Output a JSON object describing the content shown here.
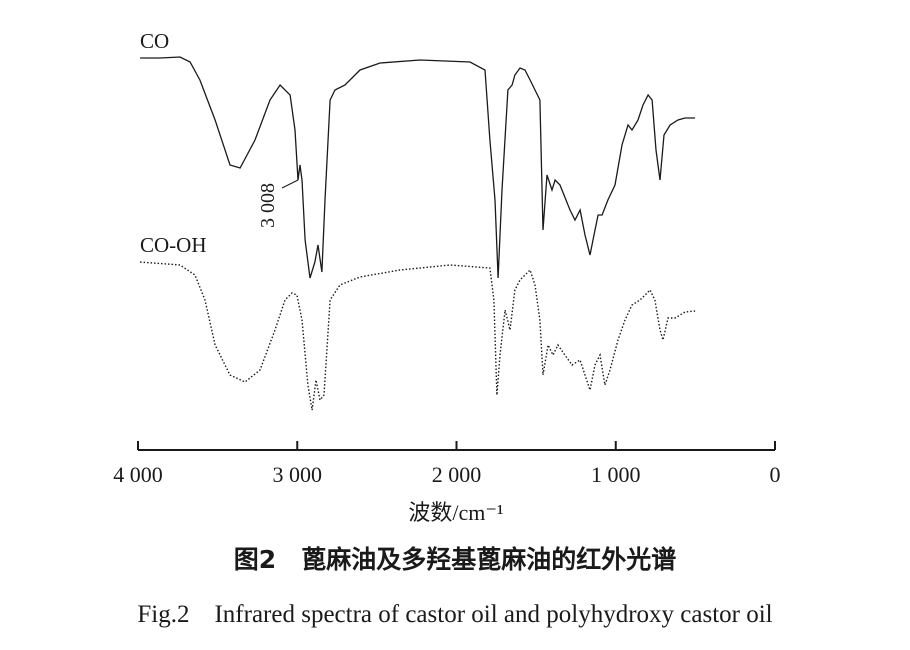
{
  "chart_data": {
    "type": "line",
    "x_label": "波数/cm⁻¹",
    "caption_cn": "图2　蓖麻油及多羟基蓖麻油的红外光谱",
    "caption_en": "Fig.2　Infrared spectra of castor oil and polyhydroxy castor oil",
    "annotation": "3 008",
    "xlim": [
      4000,
      0
    ],
    "xticks": [
      {
        "value": 4000,
        "label": "4 000"
      },
      {
        "value": 3000,
        "label": "3 000"
      },
      {
        "value": 2000,
        "label": "2 000"
      },
      {
        "value": 1000,
        "label": "1 000"
      },
      0
    ],
    "series": [
      {
        "name": "CO",
        "color": "#1a1a1a",
        "line_style": "solid",
        "x": [
          3987,
          3862,
          3736,
          3673,
          3611,
          3516,
          3422,
          3359,
          3265,
          3171,
          3108,
          3045,
          3014,
          2995,
          2983,
          2970,
          2951,
          2920,
          2889,
          2870,
          2845,
          2826,
          2794,
          2763,
          2700,
          2606,
          2480,
          2229,
          1915,
          1821,
          1790,
          1758,
          1739,
          1714,
          1677,
          1651,
          1633,
          1601,
          1570,
          1538,
          1507,
          1476,
          1457,
          1432,
          1400,
          1381,
          1350,
          1287,
          1256,
          1224,
          1193,
          1162,
          1130,
          1111,
          1086,
          1049,
          1005,
          961,
          923,
          898,
          860,
          829,
          797,
          772,
          747,
          722,
          697,
          659,
          609,
          565,
          502
        ],
        "values": [
          392,
          392,
          393,
          388,
          370,
          330,
          285,
          282,
          310,
          350,
          365,
          355,
          320,
          270,
          285,
          270,
          210,
          172,
          188,
          205,
          178,
          250,
          350,
          360,
          365,
          380,
          387,
          390,
          388,
          380,
          310,
          250,
          172,
          260,
          360,
          365,
          375,
          382,
          380,
          370,
          360,
          350,
          220,
          275,
          260,
          270,
          265,
          240,
          230,
          240,
          215,
          195,
          220,
          235,
          235,
          250,
          265,
          305,
          325,
          320,
          330,
          345,
          355,
          350,
          300,
          270,
          315,
          325,
          330,
          332,
          332
        ]
      },
      {
        "name": "CO-OH",
        "color": "#1a1a1a",
        "line_style": "dotted",
        "x": [
          3987,
          3736,
          3642,
          3579,
          3516,
          3422,
          3328,
          3234,
          3140,
          3077,
          3033,
          3002,
          2970,
          2933,
          2907,
          2882,
          2857,
          2832,
          2794,
          2732,
          2606,
          2355,
          2041,
          1790,
          1765,
          1746,
          1727,
          1695,
          1664,
          1633,
          1601,
          1570,
          1538,
          1507,
          1476,
          1457,
          1425,
          1394,
          1363,
          1319,
          1275,
          1224,
          1193,
          1162,
          1130,
          1099,
          1068,
          1036,
          986,
          942,
          898,
          848,
          816,
          785,
          754,
          722,
          703,
          672,
          628,
          565,
          502
        ],
        "values": [
          188,
          185,
          175,
          150,
          105,
          75,
          68,
          80,
          120,
          150,
          157,
          155,
          130,
          65,
          40,
          70,
          50,
          55,
          150,
          165,
          173,
          180,
          185,
          182,
          150,
          55,
          95,
          140,
          120,
          160,
          170,
          175,
          180,
          165,
          130,
          75,
          105,
          95,
          105,
          95,
          85,
          90,
          75,
          60,
          85,
          95,
          65,
          80,
          110,
          130,
          145,
          150,
          155,
          160,
          150,
          120,
          110,
          132,
          132,
          138,
          139
        ]
      }
    ]
  }
}
